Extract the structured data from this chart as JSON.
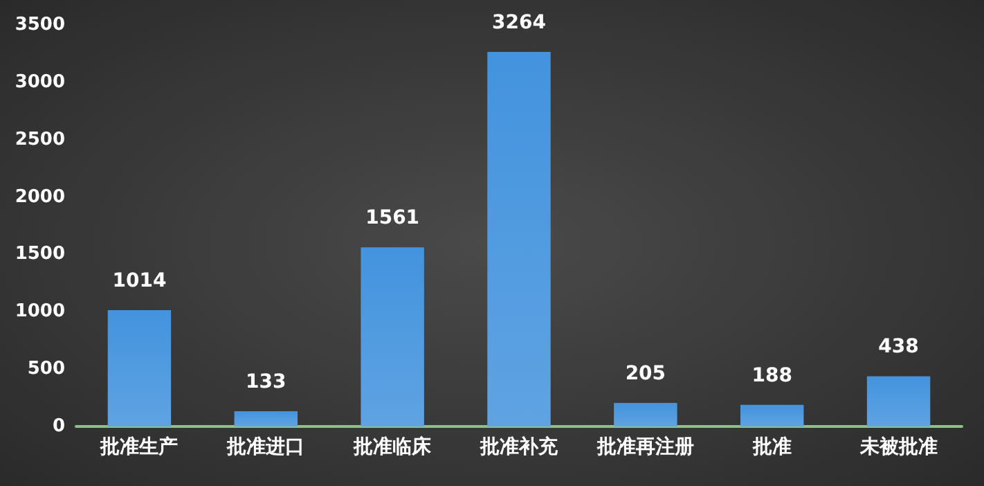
{
  "chart_data": {
    "type": "bar",
    "categories": [
      "批准生产",
      "批准进口",
      "批准临床",
      "批准补充",
      "批准再注册",
      "批准",
      "未被批准"
    ],
    "values": [
      1014,
      133,
      1561,
      3264,
      205,
      188,
      438
    ],
    "color": "#4393de",
    "ylim": [
      0,
      3500
    ],
    "yticks": [
      0,
      500,
      1000,
      1500,
      2000,
      2500,
      3000,
      3500
    ],
    "grid": false,
    "data_labels": true
  }
}
